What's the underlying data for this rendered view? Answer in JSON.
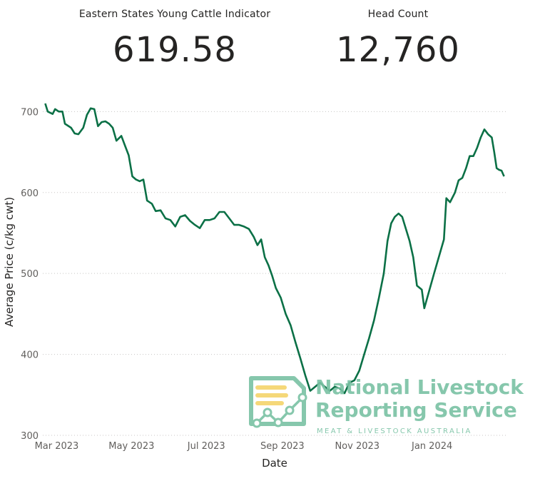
{
  "kpis": [
    {
      "title": "Eastern States Young Cattle Indicator",
      "value": "619.58"
    },
    {
      "title": "Head Count",
      "value": "12,760"
    }
  ],
  "logo": {
    "line1": "National Livestock",
    "line2": "Reporting Service",
    "line3": "MEAT & LIVESTOCK AUSTRALIA",
    "color": "#7ac2a4",
    "accent": "#f5d46b"
  },
  "chart_data": {
    "type": "line",
    "xlabel": "Date",
    "ylabel": "Average Price (c/kg cwt)",
    "ylim": [
      300,
      710
    ],
    "yticks": [
      300,
      400,
      500,
      600,
      700
    ],
    "xticks": [
      {
        "label": "Mar 2023",
        "date": "2023-03-01"
      },
      {
        "label": "May 2023",
        "date": "2023-05-01"
      },
      {
        "label": "Jul 2023",
        "date": "2023-07-01"
      },
      {
        "label": "Sep 2023",
        "date": "2023-09-01"
      },
      {
        "label": "Nov 2023",
        "date": "2023-11-01"
      },
      {
        "label": "Jan 2024",
        "date": "2024-01-01"
      }
    ],
    "xlim": [
      "2023-02-27",
      "2024-03-11"
    ],
    "grid": true,
    "color": "#0b7046",
    "series": [
      {
        "name": "",
        "points": [
          [
            "2023-03-01",
            710
          ],
          [
            "2023-03-03",
            700
          ],
          [
            "2023-03-07",
            697
          ],
          [
            "2023-03-09",
            703
          ],
          [
            "2023-03-12",
            700
          ],
          [
            "2023-03-15",
            700
          ],
          [
            "2023-03-17",
            685
          ],
          [
            "2023-03-22",
            680
          ],
          [
            "2023-03-25",
            673
          ],
          [
            "2023-03-28",
            672
          ],
          [
            "2023-04-01",
            680
          ],
          [
            "2023-04-04",
            696
          ],
          [
            "2023-04-07",
            704
          ],
          [
            "2023-04-10",
            703
          ],
          [
            "2023-04-13",
            682
          ],
          [
            "2023-04-16",
            687
          ],
          [
            "2023-04-19",
            688
          ],
          [
            "2023-04-22",
            685
          ],
          [
            "2023-04-25",
            680
          ],
          [
            "2023-04-28",
            664
          ],
          [
            "2023-05-02",
            670
          ],
          [
            "2023-05-05",
            658
          ],
          [
            "2023-05-08",
            646
          ],
          [
            "2023-05-11",
            620
          ],
          [
            "2023-05-14",
            616
          ],
          [
            "2023-05-17",
            614
          ],
          [
            "2023-05-20",
            616
          ],
          [
            "2023-05-23",
            590
          ],
          [
            "2023-05-27",
            586
          ],
          [
            "2023-05-30",
            577
          ],
          [
            "2023-06-03",
            578
          ],
          [
            "2023-06-07",
            568
          ],
          [
            "2023-06-11",
            566
          ],
          [
            "2023-06-15",
            558
          ],
          [
            "2023-06-19",
            570
          ],
          [
            "2023-06-23",
            572
          ],
          [
            "2023-06-27",
            565
          ],
          [
            "2023-07-01",
            560
          ],
          [
            "2023-07-05",
            556
          ],
          [
            "2023-07-09",
            566
          ],
          [
            "2023-07-13",
            566
          ],
          [
            "2023-07-17",
            568
          ],
          [
            "2023-07-21",
            576
          ],
          [
            "2023-07-25",
            576
          ],
          [
            "2023-07-29",
            568
          ],
          [
            "2023-08-02",
            560
          ],
          [
            "2023-08-06",
            560
          ],
          [
            "2023-08-10",
            558
          ],
          [
            "2023-08-14",
            555
          ],
          [
            "2023-08-18",
            545
          ],
          [
            "2023-08-21",
            535
          ],
          [
            "2023-08-24",
            542
          ],
          [
            "2023-08-27",
            520
          ],
          [
            "2023-08-30",
            510
          ],
          [
            "2023-09-02",
            497
          ],
          [
            "2023-09-05",
            482
          ],
          [
            "2023-09-09",
            470
          ],
          [
            "2023-09-13",
            450
          ],
          [
            "2023-09-17",
            436
          ],
          [
            "2023-09-21",
            415
          ],
          [
            "2023-09-25",
            395
          ],
          [
            "2023-09-29",
            374
          ],
          [
            "2023-10-03",
            355
          ],
          [
            "2023-10-07",
            360
          ],
          [
            "2023-10-11",
            365
          ],
          [
            "2023-10-15",
            360
          ],
          [
            "2023-10-19",
            355
          ],
          [
            "2023-10-23",
            360
          ],
          [
            "2023-10-27",
            358
          ],
          [
            "2023-10-31",
            352
          ],
          [
            "2023-11-04",
            365
          ],
          [
            "2023-11-08",
            368
          ],
          [
            "2023-11-12",
            380
          ],
          [
            "2023-11-16",
            400
          ],
          [
            "2023-11-20",
            420
          ],
          [
            "2023-11-24",
            442
          ],
          [
            "2023-11-28",
            470
          ],
          [
            "2023-12-02",
            500
          ],
          [
            "2023-12-05",
            540
          ],
          [
            "2023-12-08",
            562
          ],
          [
            "2023-12-11",
            570
          ],
          [
            "2023-12-14",
            574
          ],
          [
            "2023-12-17",
            570
          ],
          [
            "2023-12-20",
            555
          ],
          [
            "2023-12-23",
            540
          ],
          [
            "2023-12-26",
            520
          ],
          [
            "2023-12-29",
            485
          ],
          [
            "2024-01-02",
            480
          ],
          [
            "2024-01-04",
            457
          ],
          [
            "2024-01-12",
            500
          ],
          [
            "2024-01-20",
            542
          ],
          [
            "2024-01-22",
            593
          ],
          [
            "2024-01-25",
            588
          ],
          [
            "2024-01-29",
            600
          ],
          [
            "2024-02-01",
            615
          ],
          [
            "2024-02-04",
            618
          ],
          [
            "2024-02-07",
            630
          ],
          [
            "2024-02-10",
            645
          ],
          [
            "2024-02-13",
            645
          ],
          [
            "2024-02-16",
            655
          ],
          [
            "2024-02-19",
            668
          ],
          [
            "2024-02-22",
            678
          ],
          [
            "2024-02-25",
            672
          ],
          [
            "2024-02-28",
            668
          ],
          [
            "2024-03-01",
            650
          ],
          [
            "2024-03-03",
            630
          ],
          [
            "2024-03-05",
            628
          ],
          [
            "2024-03-07",
            627
          ],
          [
            "2024-03-09",
            620
          ]
        ]
      }
    ]
  }
}
